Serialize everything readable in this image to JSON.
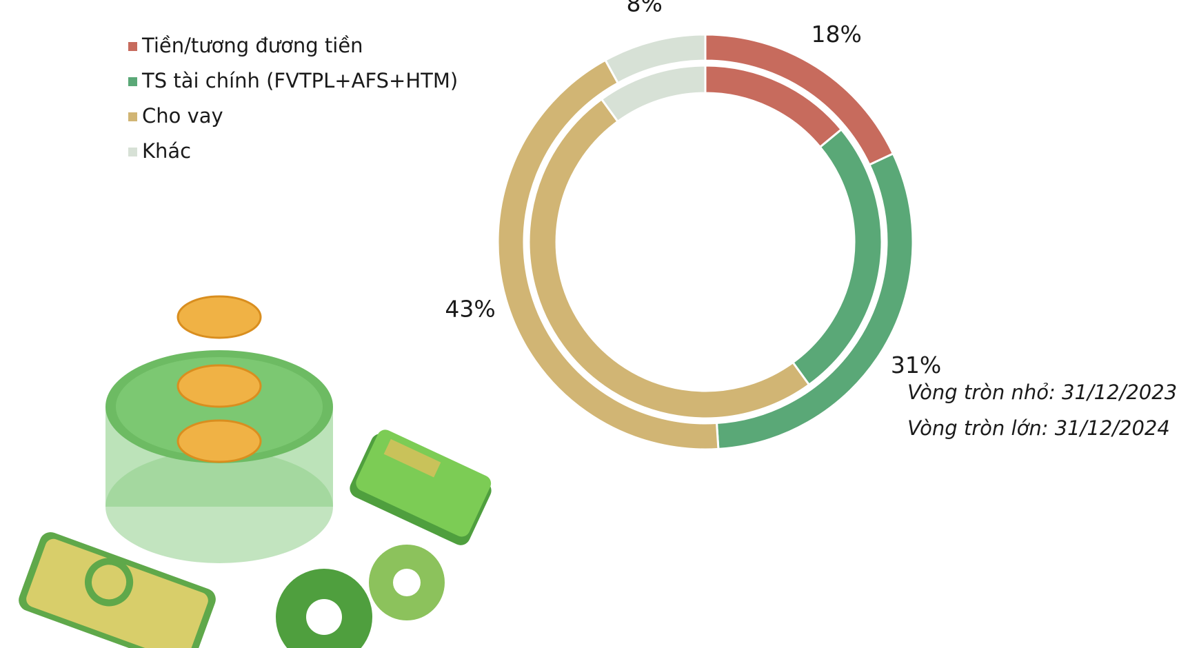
{
  "chart_data": {
    "type": "donut",
    "categories": [
      "Tiền/tương đương tiền",
      "TS tài chính (FVTPL+AFS+HTM)",
      "Cho vay",
      "Khác"
    ],
    "colors": [
      "#c76b5d",
      "#5aa877",
      "#d1b574",
      "#d7e1d6"
    ],
    "rings": [
      {
        "label": "Vòng tròn lớn: 31/12/2024",
        "values": [
          18,
          31,
          43,
          8
        ],
        "value_labels": [
          "18%",
          "31%",
          "43%",
          "8%"
        ]
      },
      {
        "label": "Vòng tròn nhỏ: 31/12/2023",
        "values": [
          14,
          26,
          50,
          10
        ]
      }
    ]
  }
}
